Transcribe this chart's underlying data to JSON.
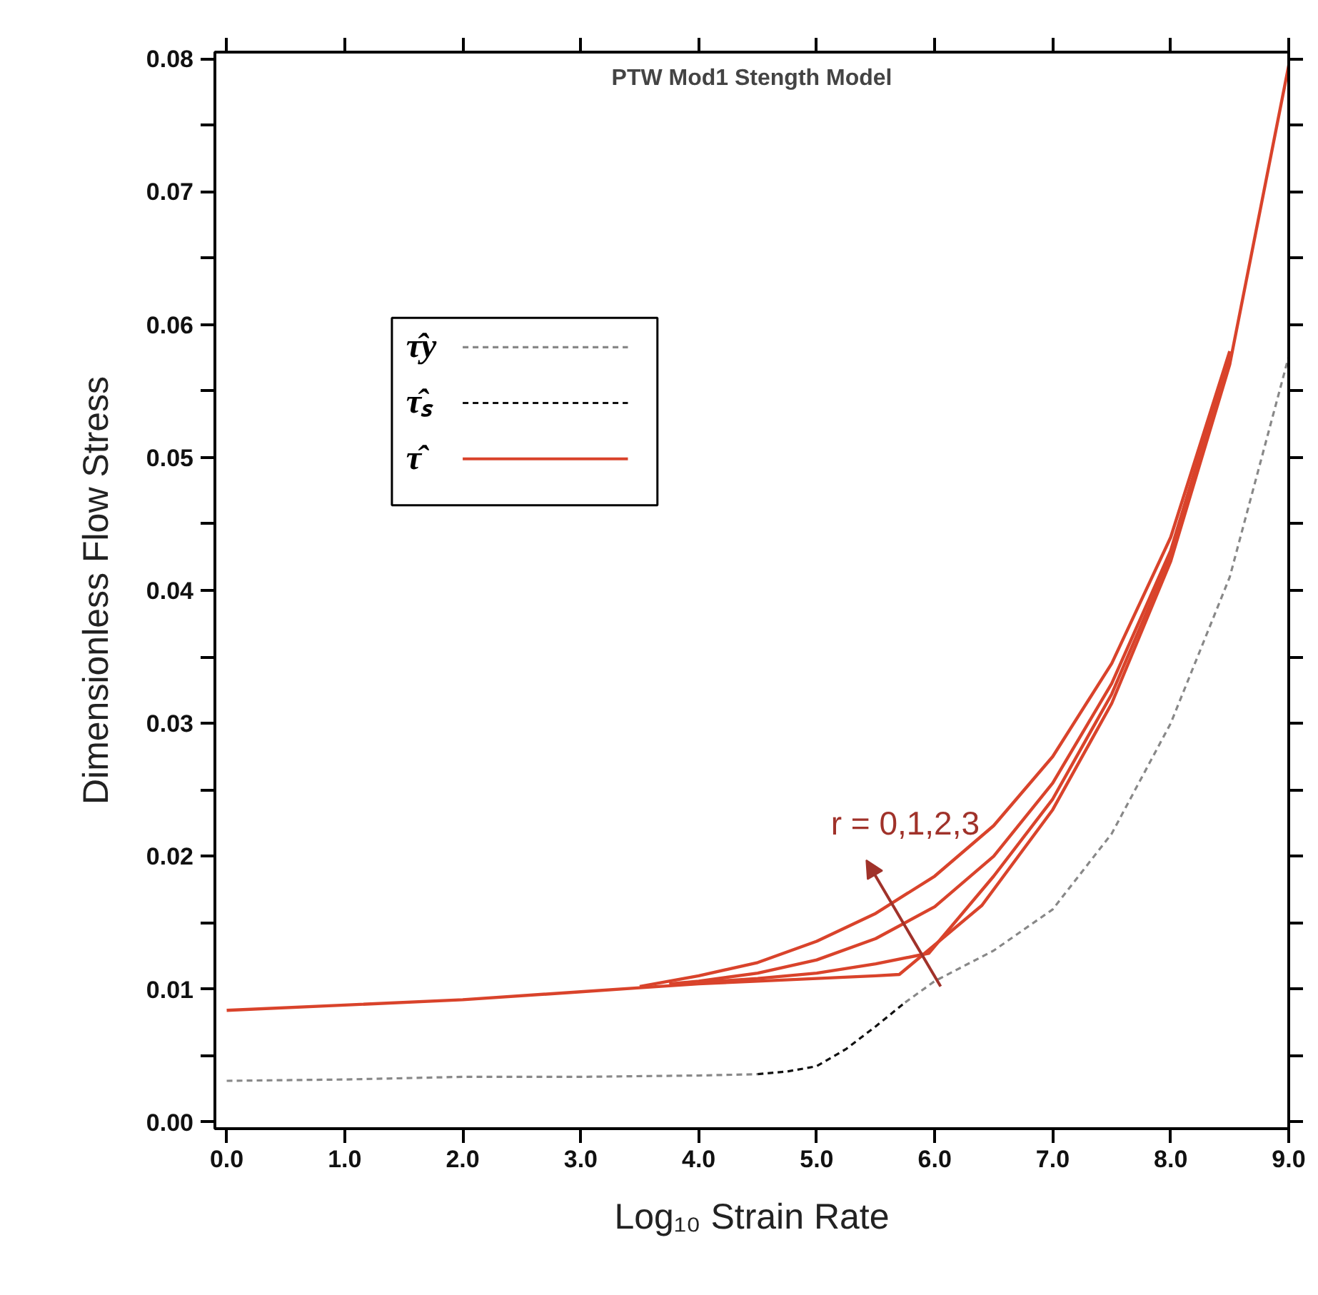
{
  "chart_data": {
    "type": "line",
    "title": "PTW Mod1 Stength Model",
    "xlabel": "Log₁₀ Strain Rate",
    "ylabel": "Dimensionless Flow Stress",
    "xlim": [
      -0.1,
      9.0
    ],
    "ylim": [
      -0.0005,
      0.0805
    ],
    "xticks": [
      {
        "value": 0,
        "label": "0.0"
      },
      {
        "value": 1,
        "label": "1.0"
      },
      {
        "value": 2,
        "label": "2.0"
      },
      {
        "value": 3,
        "label": "3.0"
      },
      {
        "value": 4,
        "label": "4.0"
      },
      {
        "value": 5,
        "label": "5.0"
      },
      {
        "value": 6,
        "label": "6.0"
      },
      {
        "value": 7,
        "label": "7.0"
      },
      {
        "value": 8,
        "label": "8.0"
      },
      {
        "value": 9,
        "label": "9.0"
      }
    ],
    "yticks": [
      {
        "value": 0,
        "label": "0.00"
      },
      {
        "value": 0.005,
        "label": null
      },
      {
        "value": 0.01,
        "label": "0.01"
      },
      {
        "value": 0.015,
        "label": null
      },
      {
        "value": 0.02,
        "label": "0.02"
      },
      {
        "value": 0.025,
        "label": null
      },
      {
        "value": 0.03,
        "label": "0.03"
      },
      {
        "value": 0.035,
        "label": null
      },
      {
        "value": 0.04,
        "label": "0.04"
      },
      {
        "value": 0.045,
        "label": null
      },
      {
        "value": 0.05,
        "label": "0.05"
      },
      {
        "value": 0.055,
        "label": null
      },
      {
        "value": 0.06,
        "label": "0.06"
      },
      {
        "value": 0.065,
        "label": null
      },
      {
        "value": 0.07,
        "label": "0.07"
      },
      {
        "value": 0.075,
        "label": null
      },
      {
        "value": 0.08,
        "label": "0.08"
      }
    ],
    "grid": false,
    "legend": "top left",
    "marker": "none",
    "series": [
      {
        "name": "τ̂y",
        "color": "#888888",
        "line_style": "dashed",
        "x": [
          0,
          1,
          2,
          3,
          4,
          4.5,
          4.75,
          5.0,
          5.25,
          5.5,
          5.75,
          6,
          6.5,
          7,
          7.5,
          8,
          8.5,
          9
        ],
        "values": [
          0.0031,
          0.0032,
          0.0034,
          0.0034,
          0.0035,
          0.0036,
          null,
          null,
          null,
          null,
          0.009,
          0.0106,
          0.0129,
          0.016,
          0.0217,
          0.03,
          0.041,
          0.0576
        ]
      },
      {
        "name": "τ̂ₛ",
        "color": "#111111",
        "line_style": "dashed",
        "x": [
          4.5,
          4.75,
          5.0,
          5.25,
          5.5,
          5.75
        ],
        "values": [
          0.0036,
          0.0038,
          0.0042,
          0.0055,
          0.0072,
          0.009
        ]
      },
      {
        "name": "τ̂",
        "color": "#d9432b",
        "line_style": "solid",
        "x": [
          0,
          1,
          2,
          3,
          3.5,
          4,
          4.5,
          5,
          5.5,
          5.7,
          6.4,
          7,
          7.5,
          8,
          8.5,
          9
        ],
        "values": [
          0.0084,
          0.0088,
          0.0092,
          0.0098,
          0.0101,
          0.0104,
          0.0106,
          0.0108,
          0.011,
          0.0111,
          0.0163,
          0.0235,
          0.0315,
          0.0422,
          0.057,
          0.0795
        ]
      },
      {
        "color": "#d9432b",
        "line_style": "solid",
        "x": [
          4,
          4.5,
          5,
          5.5,
          5.95,
          6.5,
          7,
          7.5,
          8,
          8.5
        ],
        "values": [
          0.0105,
          0.0108,
          0.0112,
          0.0119,
          0.0127,
          0.0185,
          0.0243,
          0.0322,
          0.0426,
          0.0574
        ]
      },
      {
        "color": "#d9432b",
        "line_style": "solid",
        "x": [
          3.75,
          4,
          4.5,
          5,
          5.5,
          6,
          6.5,
          7,
          7.5,
          8,
          8.5
        ],
        "values": [
          0.0104,
          0.0106,
          0.0112,
          0.0122,
          0.0138,
          0.0162,
          0.02,
          0.0255,
          0.033,
          0.043,
          0.0577
        ]
      },
      {
        "color": "#d9432b",
        "line_style": "solid",
        "x": [
          3.5,
          4,
          4.5,
          5,
          5.5,
          6,
          6.5,
          7,
          7.5,
          8,
          8.5
        ],
        "values": [
          0.0102,
          0.011,
          0.012,
          0.0136,
          0.0157,
          0.0185,
          0.0223,
          0.0275,
          0.0345,
          0.044,
          0.058
        ]
      }
    ],
    "annotations": [
      "r = 0,1,2,3"
    ]
  }
}
